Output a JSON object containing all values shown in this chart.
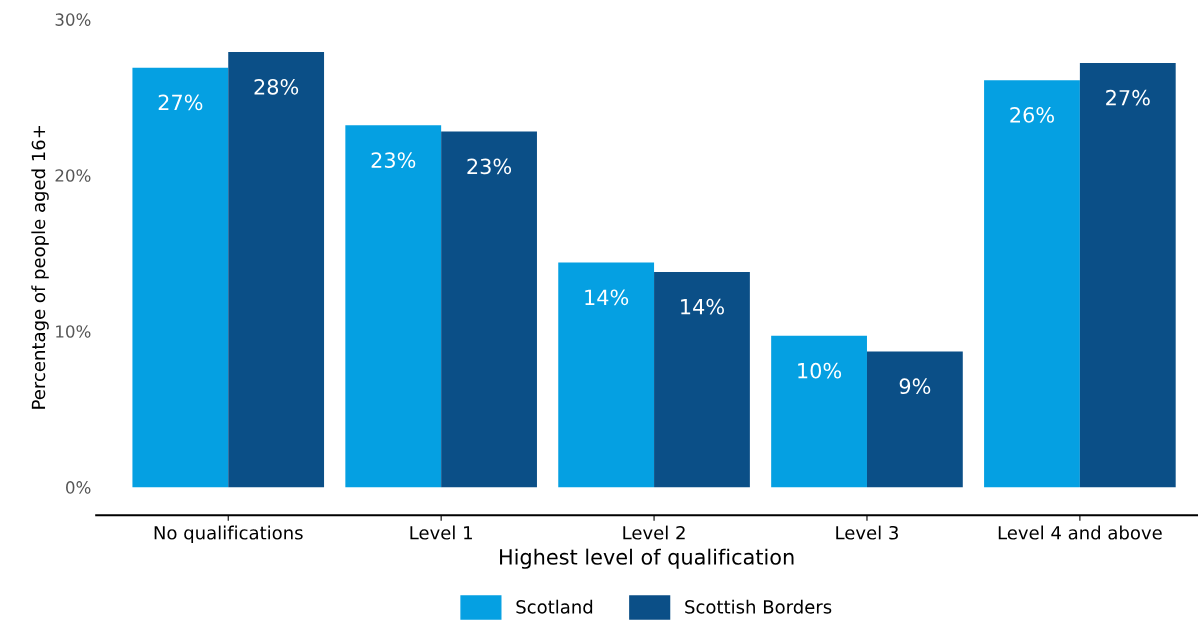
{
  "chart_data": {
    "type": "bar",
    "xlabel": "Highest level of qualification",
    "ylabel": "Percentage of people aged 16+",
    "categories": [
      "No qualifications",
      "Level 1",
      "Level 2",
      "Level 3",
      "Level 4 and above"
    ],
    "series": [
      {
        "name": "Scotland",
        "color": "#05a0e2",
        "values": [
          26.9,
          23.2,
          14.4,
          9.7,
          26.1
        ],
        "value_labels": [
          "27%",
          "23%",
          "14%",
          "10%",
          "26%"
        ]
      },
      {
        "name": "Scottish Borders",
        "color": "#0b4f87",
        "values": [
          27.9,
          22.8,
          13.8,
          8.7,
          27.2
        ],
        "value_labels": [
          "28%",
          "23%",
          "14%",
          "9%",
          "27%"
        ]
      }
    ],
    "ylim": [
      -1.8,
      30
    ],
    "yticks": [
      {
        "value": 0,
        "label": "0%"
      },
      {
        "value": 10,
        "label": "10%"
      },
      {
        "value": 20,
        "label": "20%"
      },
      {
        "value": 30,
        "label": "30%"
      }
    ],
    "grid": false,
    "legend": "bottom"
  }
}
